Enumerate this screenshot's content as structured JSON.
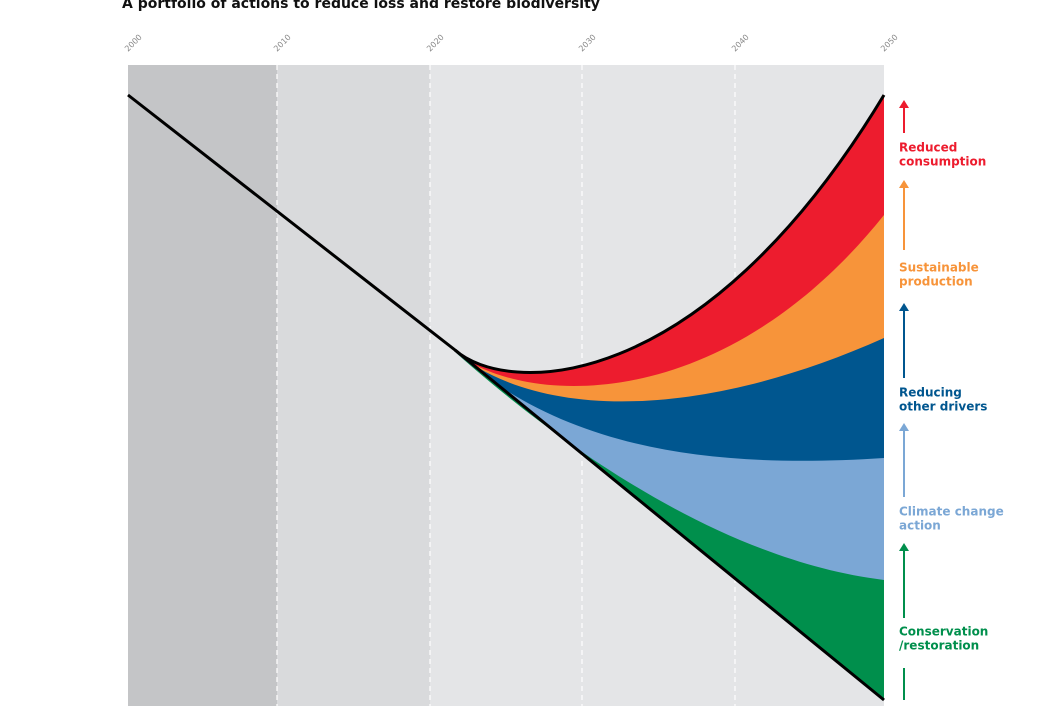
{
  "header": {
    "title": "A portfolio of actions to reduce loss and restore biodiversity"
  },
  "timeline": {
    "labels": [
      "2000",
      "2010",
      "2020",
      "2030",
      "2040",
      "2050"
    ]
  },
  "actions": [
    {
      "lines": [
        "Reduced",
        "consumption"
      ]
    },
    {
      "lines": [
        "Sustainable",
        "production"
      ]
    },
    {
      "lines": [
        "Reducing",
        "other drivers"
      ]
    },
    {
      "lines": [
        "Climate change",
        "action"
      ]
    },
    {
      "lines": [
        "Conservation",
        "/restoration"
      ]
    }
  ]
}
